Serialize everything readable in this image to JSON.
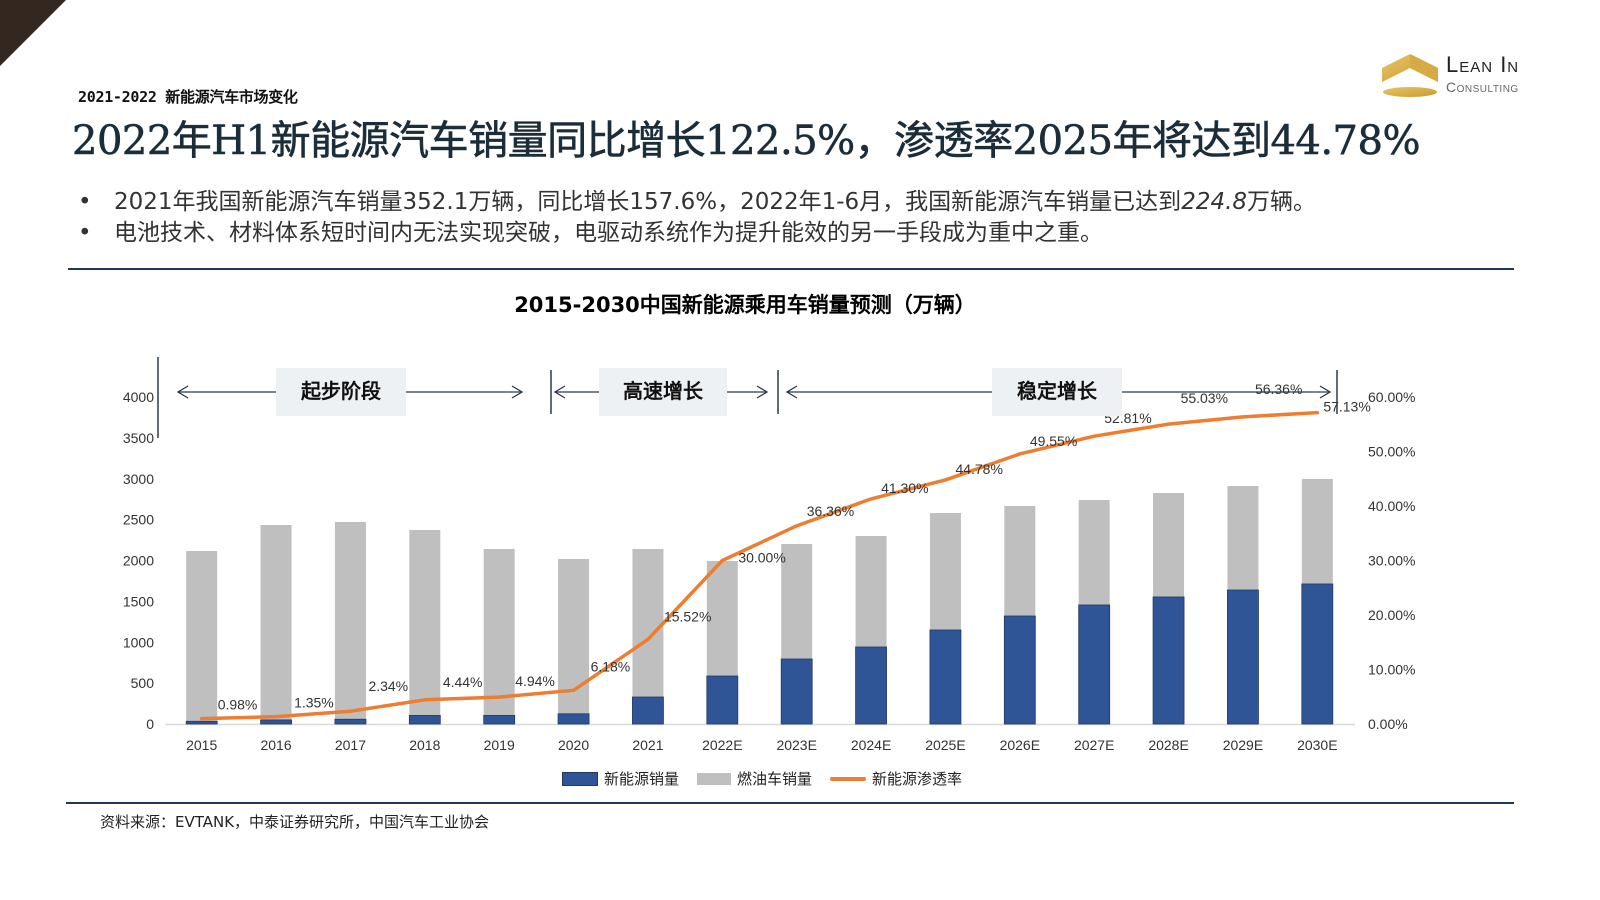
{
  "header": {
    "section_label": "2021-2022 新能源汽车市场变化",
    "headline": "2022年H1新能源汽车销量同比增长122.5%，渗透率2025年将达到44.78%"
  },
  "logo": {
    "line1": "Lean In",
    "line2": "Consulting",
    "brand_color": "#d9b24a"
  },
  "bullets": [
    {
      "marker": "•",
      "text_before": "2021年我国新能源汽车销量352.1万辆，同比增长157.6%，2022年1-6月，我国新能源汽车销量已达到",
      "text_italic": "224.8",
      "text_after": "万辆。"
    },
    {
      "marker": "•",
      "text_before": "电池技术、材料体系短时间内无法实现突破，电驱动系统作为提升能效的另一手段成为重中之重。",
      "text_italic": "",
      "text_after": ""
    }
  ],
  "chart_data": {
    "type": "bar",
    "stacked": true,
    "title": "2015-2030中国新能源乘用车销量预测（万辆）",
    "categories": [
      "2015",
      "2016",
      "2017",
      "2018",
      "2019",
      "2020",
      "2021",
      "2022E",
      "2023E",
      "2024E",
      "2025E",
      "2026E",
      "2027E",
      "2028E",
      "2029E",
      "2030E"
    ],
    "series": [
      {
        "name": "新能源销量",
        "type": "bar",
        "axis": "left",
        "color": "#2f5597",
        "values": [
          33,
          50,
          58,
          105,
          105,
          125,
          330,
          587,
          795,
          942,
          1150,
          1321,
          1456,
          1554,
          1639,
          1713
        ]
      },
      {
        "name": "燃油车销量",
        "type": "bar",
        "axis": "left",
        "color": "#bfbfbf",
        "values": [
          2083,
          2384,
          2413,
          2268,
          2036,
          1893,
          1811,
          1407,
          1407,
          1358,
          1431,
          1346,
          1284,
          1272,
          1272,
          1284
        ]
      },
      {
        "name": "新能源渗透率",
        "type": "line",
        "axis": "right",
        "color": "#ed7d31",
        "values": [
          0.98,
          1.35,
          2.34,
          4.44,
          4.94,
          6.18,
          15.52,
          30.0,
          36.36,
          41.3,
          44.78,
          49.55,
          52.81,
          55.03,
          56.36,
          57.13
        ],
        "labels": [
          "0.98%",
          "1.35%",
          "2.34%",
          "4.44%",
          "4.94%",
          "6.18%",
          "15.52%",
          "30.00%",
          "36.36%",
          "41.30%",
          "44.78%",
          "49.55%",
          "52.81%",
          "55.03%",
          "56.36%",
          "57.13%"
        ]
      }
    ],
    "y_left": {
      "min": 0,
      "max": 4000,
      "ticks": [
        "0",
        "500",
        "1000",
        "1500",
        "2000",
        "2500",
        "3000",
        "3500",
        "4000"
      ]
    },
    "y_right": {
      "min": 0,
      "max": 60,
      "ticks": [
        "0.00%",
        "10.00%",
        "20.00%",
        "30.00%",
        "40.00%",
        "50.00%",
        "60.00%"
      ]
    },
    "xlabel": "",
    "ylabel": "",
    "grid": false,
    "legend_position": "bottom",
    "phases": [
      {
        "label": "起步阶段",
        "from": "2015",
        "to": "2020"
      },
      {
        "label": "高速增长",
        "from": "2021",
        "to": "2022E"
      },
      {
        "label": "稳定增长",
        "from": "2023E",
        "to": "2030E"
      }
    ]
  },
  "legend": [
    {
      "label": "新能源销量",
      "kind": "bar-nev"
    },
    {
      "label": "燃油车销量",
      "kind": "bar-ice"
    },
    {
      "label": "新能源渗透率",
      "kind": "line"
    }
  ],
  "footer": {
    "source": "资料来源：EVTANK，中泰证券研究所，中国汽车工业协会"
  }
}
